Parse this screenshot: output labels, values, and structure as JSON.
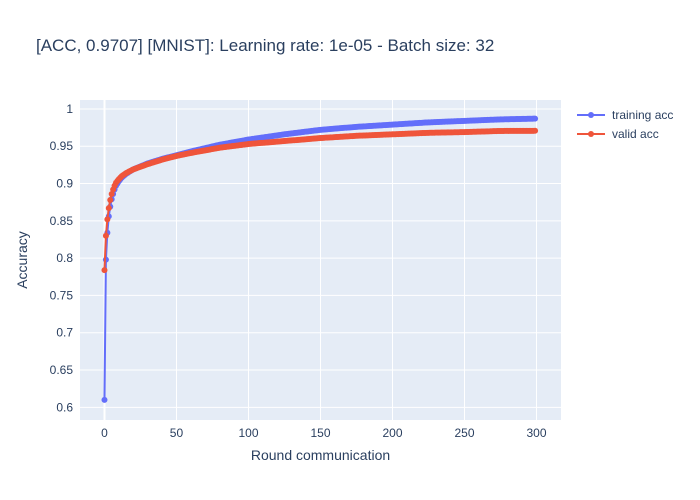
{
  "chart_data": {
    "type": "line",
    "title": "[ACC, 0.9707] [MNIST]: Learning rate: 1e-05 - Batch size: 32",
    "xlabel": "Round communication",
    "ylabel": "Accuracy",
    "xlim": [
      -17,
      317
    ],
    "ylim": [
      0.583,
      1.012
    ],
    "xticks": [
      0,
      50,
      100,
      150,
      200,
      250,
      300
    ],
    "yticks": [
      0.6,
      0.65,
      0.7,
      0.75,
      0.8,
      0.85,
      0.9,
      0.95,
      1
    ],
    "ytick_labels": [
      "0.6",
      "0.65",
      "0.7",
      "0.75",
      "0.8",
      "0.85",
      "0.9",
      "0.95",
      "1"
    ],
    "grid": true,
    "legend": "top-right",
    "series": [
      {
        "name": "training acc",
        "color": "#636efa",
        "x": [
          0,
          1,
          2,
          3,
          4,
          5,
          6,
          7,
          8,
          10,
          12,
          15,
          20,
          30,
          40,
          50,
          60,
          80,
          100,
          125,
          150,
          175,
          200,
          225,
          250,
          275,
          299
        ],
        "y": [
          0.61,
          0.798,
          0.834,
          0.856,
          0.869,
          0.879,
          0.886,
          0.892,
          0.897,
          0.903,
          0.908,
          0.913,
          0.919,
          0.927,
          0.933,
          0.938,
          0.943,
          0.952,
          0.959,
          0.966,
          0.972,
          0.976,
          0.979,
          0.982,
          0.984,
          0.986,
          0.987
        ]
      },
      {
        "name": "valid acc",
        "color": "#ef553b",
        "x": [
          0,
          1,
          2,
          3,
          4,
          5,
          6,
          7,
          8,
          10,
          12,
          15,
          20,
          30,
          40,
          50,
          60,
          80,
          100,
          125,
          150,
          175,
          200,
          225,
          250,
          275,
          299
        ],
        "y": [
          0.784,
          0.83,
          0.852,
          0.867,
          0.878,
          0.886,
          0.892,
          0.897,
          0.901,
          0.906,
          0.91,
          0.914,
          0.919,
          0.926,
          0.932,
          0.937,
          0.941,
          0.948,
          0.953,
          0.957,
          0.961,
          0.964,
          0.966,
          0.968,
          0.969,
          0.9705,
          0.9707
        ]
      }
    ]
  }
}
